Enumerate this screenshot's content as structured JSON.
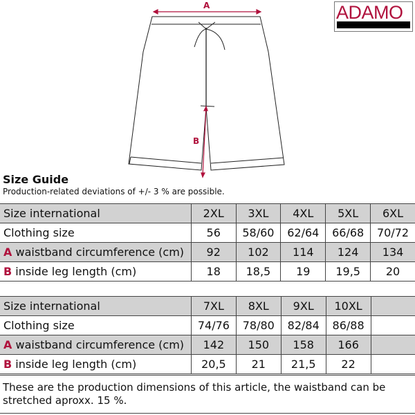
{
  "brand": {
    "logo_text": "ADAMO",
    "color": "#b0123d"
  },
  "diagram": {
    "label_a": "A",
    "label_b": "B"
  },
  "title": "Size Guide",
  "subtitle": "Production-related deviations of +/- 3 % are possible.",
  "tables": [
    {
      "rows": [
        {
          "label": "Size international",
          "key": "",
          "values": [
            "2XL",
            "3XL",
            "4XL",
            "5XL",
            "6XL"
          ]
        },
        {
          "label": "Clothing size",
          "key": "",
          "values": [
            "56",
            "58/60",
            "62/64",
            "66/68",
            "70/72"
          ]
        },
        {
          "label": "waistband circumference (cm)",
          "key": "A",
          "values": [
            "92",
            "102",
            "114",
            "124",
            "134"
          ]
        },
        {
          "label": "inside leg length (cm)",
          "key": "B",
          "values": [
            "18",
            "18,5",
            "19",
            "19,5",
            "20"
          ]
        }
      ]
    },
    {
      "rows": [
        {
          "label": "Size international",
          "key": "",
          "values": [
            "7XL",
            "8XL",
            "9XL",
            "10XL",
            ""
          ]
        },
        {
          "label": "Clothing size",
          "key": "",
          "values": [
            "74/76",
            "78/80",
            "82/84",
            "86/88",
            ""
          ]
        },
        {
          "label": "waistband circumference (cm)",
          "key": "A",
          "values": [
            "142",
            "150",
            "158",
            "166",
            ""
          ]
        },
        {
          "label": "inside leg length (cm)",
          "key": "B",
          "values": [
            "20,5",
            "21",
            "21,5",
            "22",
            ""
          ]
        }
      ]
    }
  ],
  "footer": "These are the production dimensions of this article, the waistband can be stretched aproxx. 15 %."
}
